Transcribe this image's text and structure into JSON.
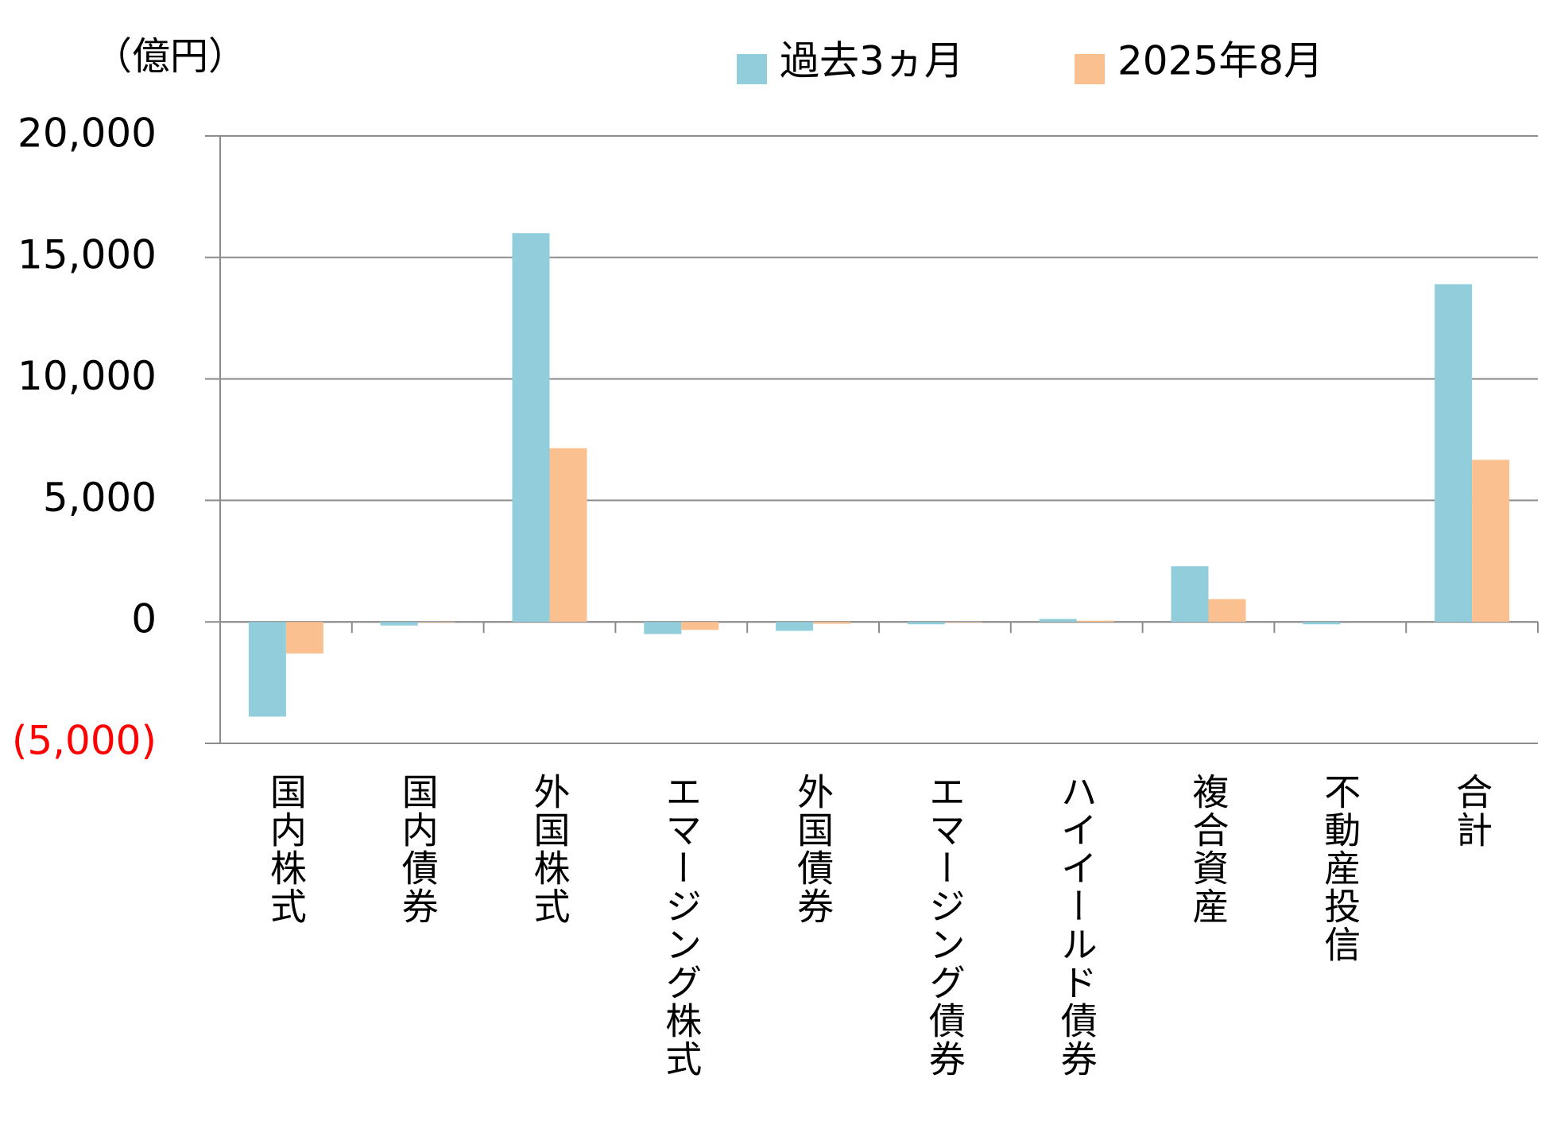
{
  "chart_data": {
    "type": "bar",
    "unit_label": "（億円）",
    "categories": [
      "国内株式",
      "国内債券",
      "外国株式",
      "エマージング株式",
      "外国債券",
      "エマージング債券",
      "ハイイールド債券",
      "複合資産",
      "不動産投信",
      "合計"
    ],
    "series": [
      {
        "name": "過去3ヵ月",
        "color": "#92cddc",
        "values": [
          -3900,
          -150,
          16000,
          -500,
          -370,
          -100,
          120,
          2290,
          -100,
          13900
        ]
      },
      {
        "name": "2025年8月",
        "color": "#fac090",
        "values": [
          -1300,
          -20,
          7150,
          -330,
          -80,
          -20,
          50,
          940,
          0,
          6670
        ]
      }
    ],
    "ylim": [
      -5000,
      20000
    ],
    "yticks": [
      {
        "value": -5000,
        "label": "(5,000)"
      },
      {
        "value": 0,
        "label": "0"
      },
      {
        "value": 5000,
        "label": "5,000"
      },
      {
        "value": 10000,
        "label": "10,000"
      },
      {
        "value": 15000,
        "label": "15,000"
      },
      {
        "value": 20000,
        "label": "20,000"
      }
    ],
    "negative_tick_color": "#ff0000",
    "grid": true,
    "legend": "top"
  }
}
